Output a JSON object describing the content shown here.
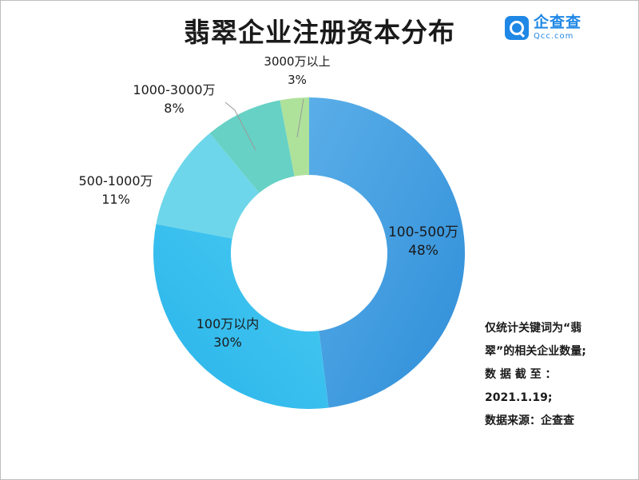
{
  "title": "翡翠企业注册资本分布",
  "logo": {
    "name": "企查查",
    "domain": "Qcc.com"
  },
  "chart_data": {
    "type": "pie",
    "style": "donut",
    "categories": [
      "100-500万",
      "100万以内",
      "500-1000万",
      "1000-3000万",
      "3000万以上"
    ],
    "values": [
      48,
      30,
      11,
      8,
      3
    ],
    "percent_labels": [
      "48%",
      "30%",
      "11%",
      "8%",
      "3%"
    ],
    "colors": [
      "#3a97dc",
      "#42bff0",
      "#6ed6ea",
      "#67d1c5",
      "#aee29a"
    ]
  },
  "notes": [
    "仅统计关键词为“翡",
    "翠”的相关企业数量;",
    "数 据 截 至 ：",
    "2021.1.19;",
    "数据来源：企查查"
  ]
}
